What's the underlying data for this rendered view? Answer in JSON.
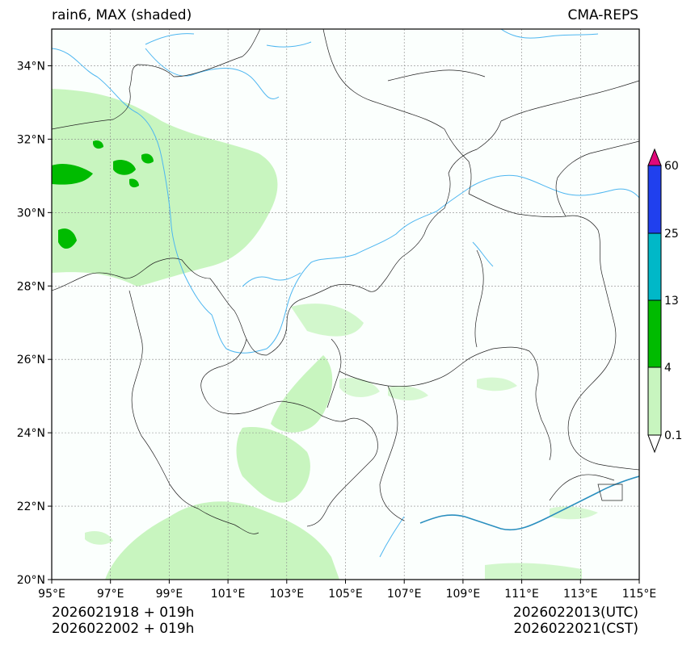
{
  "title": {
    "left": "rain6, MAX (shaded)",
    "right": "CMA-REPS"
  },
  "footer": {
    "init": "2026021918  +  019h",
    "init_bj": "2026022002  +  019h",
    "valid_utc": "2026022013(UTC)",
    "valid_cst": "2026022021(CST)"
  },
  "map": {
    "lon_range": [
      95,
      115
    ],
    "lat_range": [
      20,
      35
    ],
    "lon_ticks": [
      "95°E",
      "97°E",
      "99°E",
      "101°E",
      "103°E",
      "105°E",
      "107°E",
      "109°E",
      "111°E",
      "113°E",
      "115°E"
    ],
    "lat_ticks": [
      "20°N",
      "22°N",
      "24°N",
      "26°N",
      "28°N",
      "30°N",
      "32°N",
      "34°N"
    ]
  },
  "colorbar": {
    "levels": [
      "0.1",
      "4",
      "13",
      "25",
      "60"
    ],
    "colors": {
      "under": "#ffffff",
      "bin1": "#c8f5bf",
      "bin2": "#00bb00",
      "bin3": "#00b8c8",
      "bin4": "#2040ee",
      "over": "#e0087a"
    }
  },
  "colors": {
    "land": "#fbfffd",
    "border": "#222222",
    "river": "#4db6f0",
    "grid": "#888888"
  }
}
